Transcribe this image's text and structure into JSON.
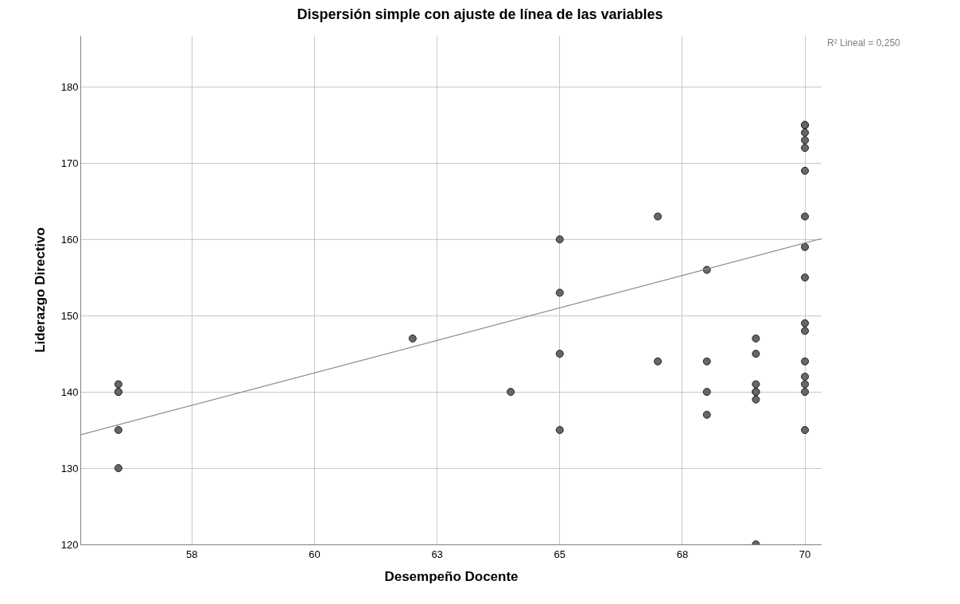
{
  "chart_data": {
    "type": "scatter",
    "title": "Dispersión simple con ajuste de línea de las variables",
    "xlabel": "Desempeño Docente",
    "ylabel": "Liderazgo Directivo",
    "annotations": [
      "R² Lineal = 0,250"
    ],
    "xlim": [
      55.24,
      70.34
    ],
    "ylim": [
      120,
      186.7
    ],
    "xticks": [
      {
        "value": 57.5,
        "label": "58"
      },
      {
        "value": 60,
        "label": "60"
      },
      {
        "value": 62.5,
        "label": "63"
      },
      {
        "value": 65,
        "label": "65"
      },
      {
        "value": 67.5,
        "label": "68"
      },
      {
        "value": 70,
        "label": "70"
      }
    ],
    "yticks": [
      120,
      130,
      140,
      150,
      160,
      170,
      180
    ],
    "grid": true,
    "marker": "circle",
    "series": [
      {
        "color": "#666666",
        "x": [
          56,
          56,
          56,
          56,
          56,
          62,
          64,
          65,
          65,
          65,
          65,
          67,
          67,
          68,
          68,
          68,
          68,
          69,
          69,
          69,
          69,
          69,
          69,
          69,
          70,
          70,
          70,
          70,
          70,
          70,
          70,
          70,
          70,
          70,
          70,
          70,
          70,
          70,
          70,
          70
        ],
        "values": [
          141,
          140,
          140,
          135,
          130,
          147,
          140,
          160,
          153,
          145,
          135,
          163,
          144,
          156,
          144,
          140,
          137,
          147,
          145,
          141,
          140,
          140,
          139,
          120,
          175,
          175,
          174,
          173,
          172,
          169,
          163,
          159,
          155,
          149,
          148,
          144,
          142,
          141,
          140,
          135
        ]
      },
      {
        "type": "line",
        "color": "#8c8c8c",
        "marker": "none",
        "x": [
          55.24,
          70.34
        ],
        "values": [
          134.4,
          160.1
        ]
      }
    ]
  }
}
